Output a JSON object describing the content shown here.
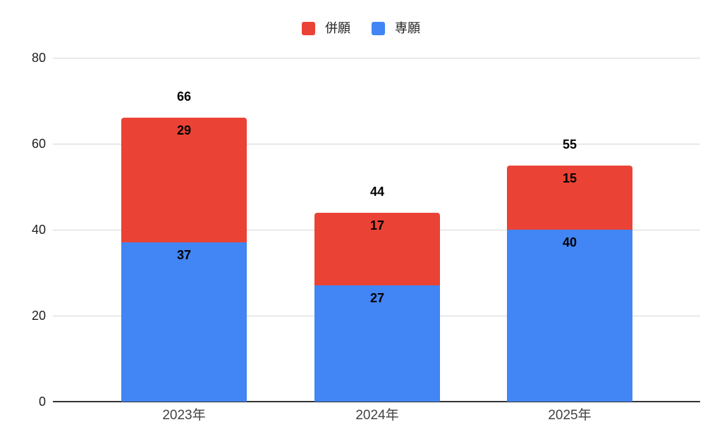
{
  "chart_data": {
    "type": "bar",
    "stacked": true,
    "title": "",
    "xlabel": "",
    "ylabel": "",
    "categories": [
      "2023年",
      "2024年",
      "2025年"
    ],
    "series": [
      {
        "name": "併願",
        "color": "#EA4335",
        "values": [
          29,
          17,
          15
        ]
      },
      {
        "name": "専願",
        "color": "#4285F4",
        "values": [
          37,
          27,
          40
        ]
      }
    ],
    "totals": [
      66,
      44,
      55
    ],
    "yticks": [
      0,
      20,
      40,
      60,
      80
    ],
    "ylim": [
      0,
      80
    ],
    "grid": true,
    "legend_position": "top",
    "gridline_color": "#d6d6d6",
    "axis_line_color": "#333333"
  }
}
